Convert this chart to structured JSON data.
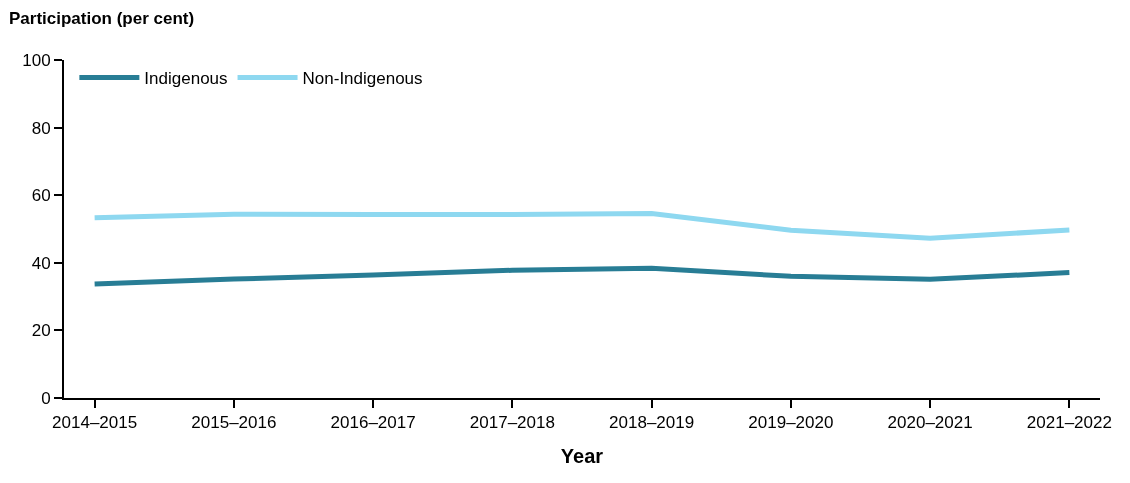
{
  "chart_data": {
    "type": "line",
    "ylabel": "Participation (per cent)",
    "xlabel": "Year",
    "categories": [
      "2014–2015",
      "2015–2016",
      "2016–2017",
      "2017–2018",
      "2018–2019",
      "2019–2020",
      "2020–2021",
      "2021–2022"
    ],
    "series": [
      {
        "name": "Indigenous",
        "color": "#287d95",
        "values": [
          33.7,
          35.2,
          36.4,
          37.8,
          38.4,
          36.0,
          35.1,
          37.1
        ]
      },
      {
        "name": "Non-Indigenous",
        "color": "#8ed8f0",
        "values": [
          53.3,
          54.4,
          54.3,
          54.3,
          54.6,
          49.6,
          47.3,
          49.7
        ]
      }
    ],
    "ylim": [
      0,
      100
    ],
    "yticks": [
      0,
      20,
      40,
      60,
      80,
      100
    ],
    "grid": false,
    "legend": "top left",
    "marker": "none",
    "line_style": "solid"
  }
}
